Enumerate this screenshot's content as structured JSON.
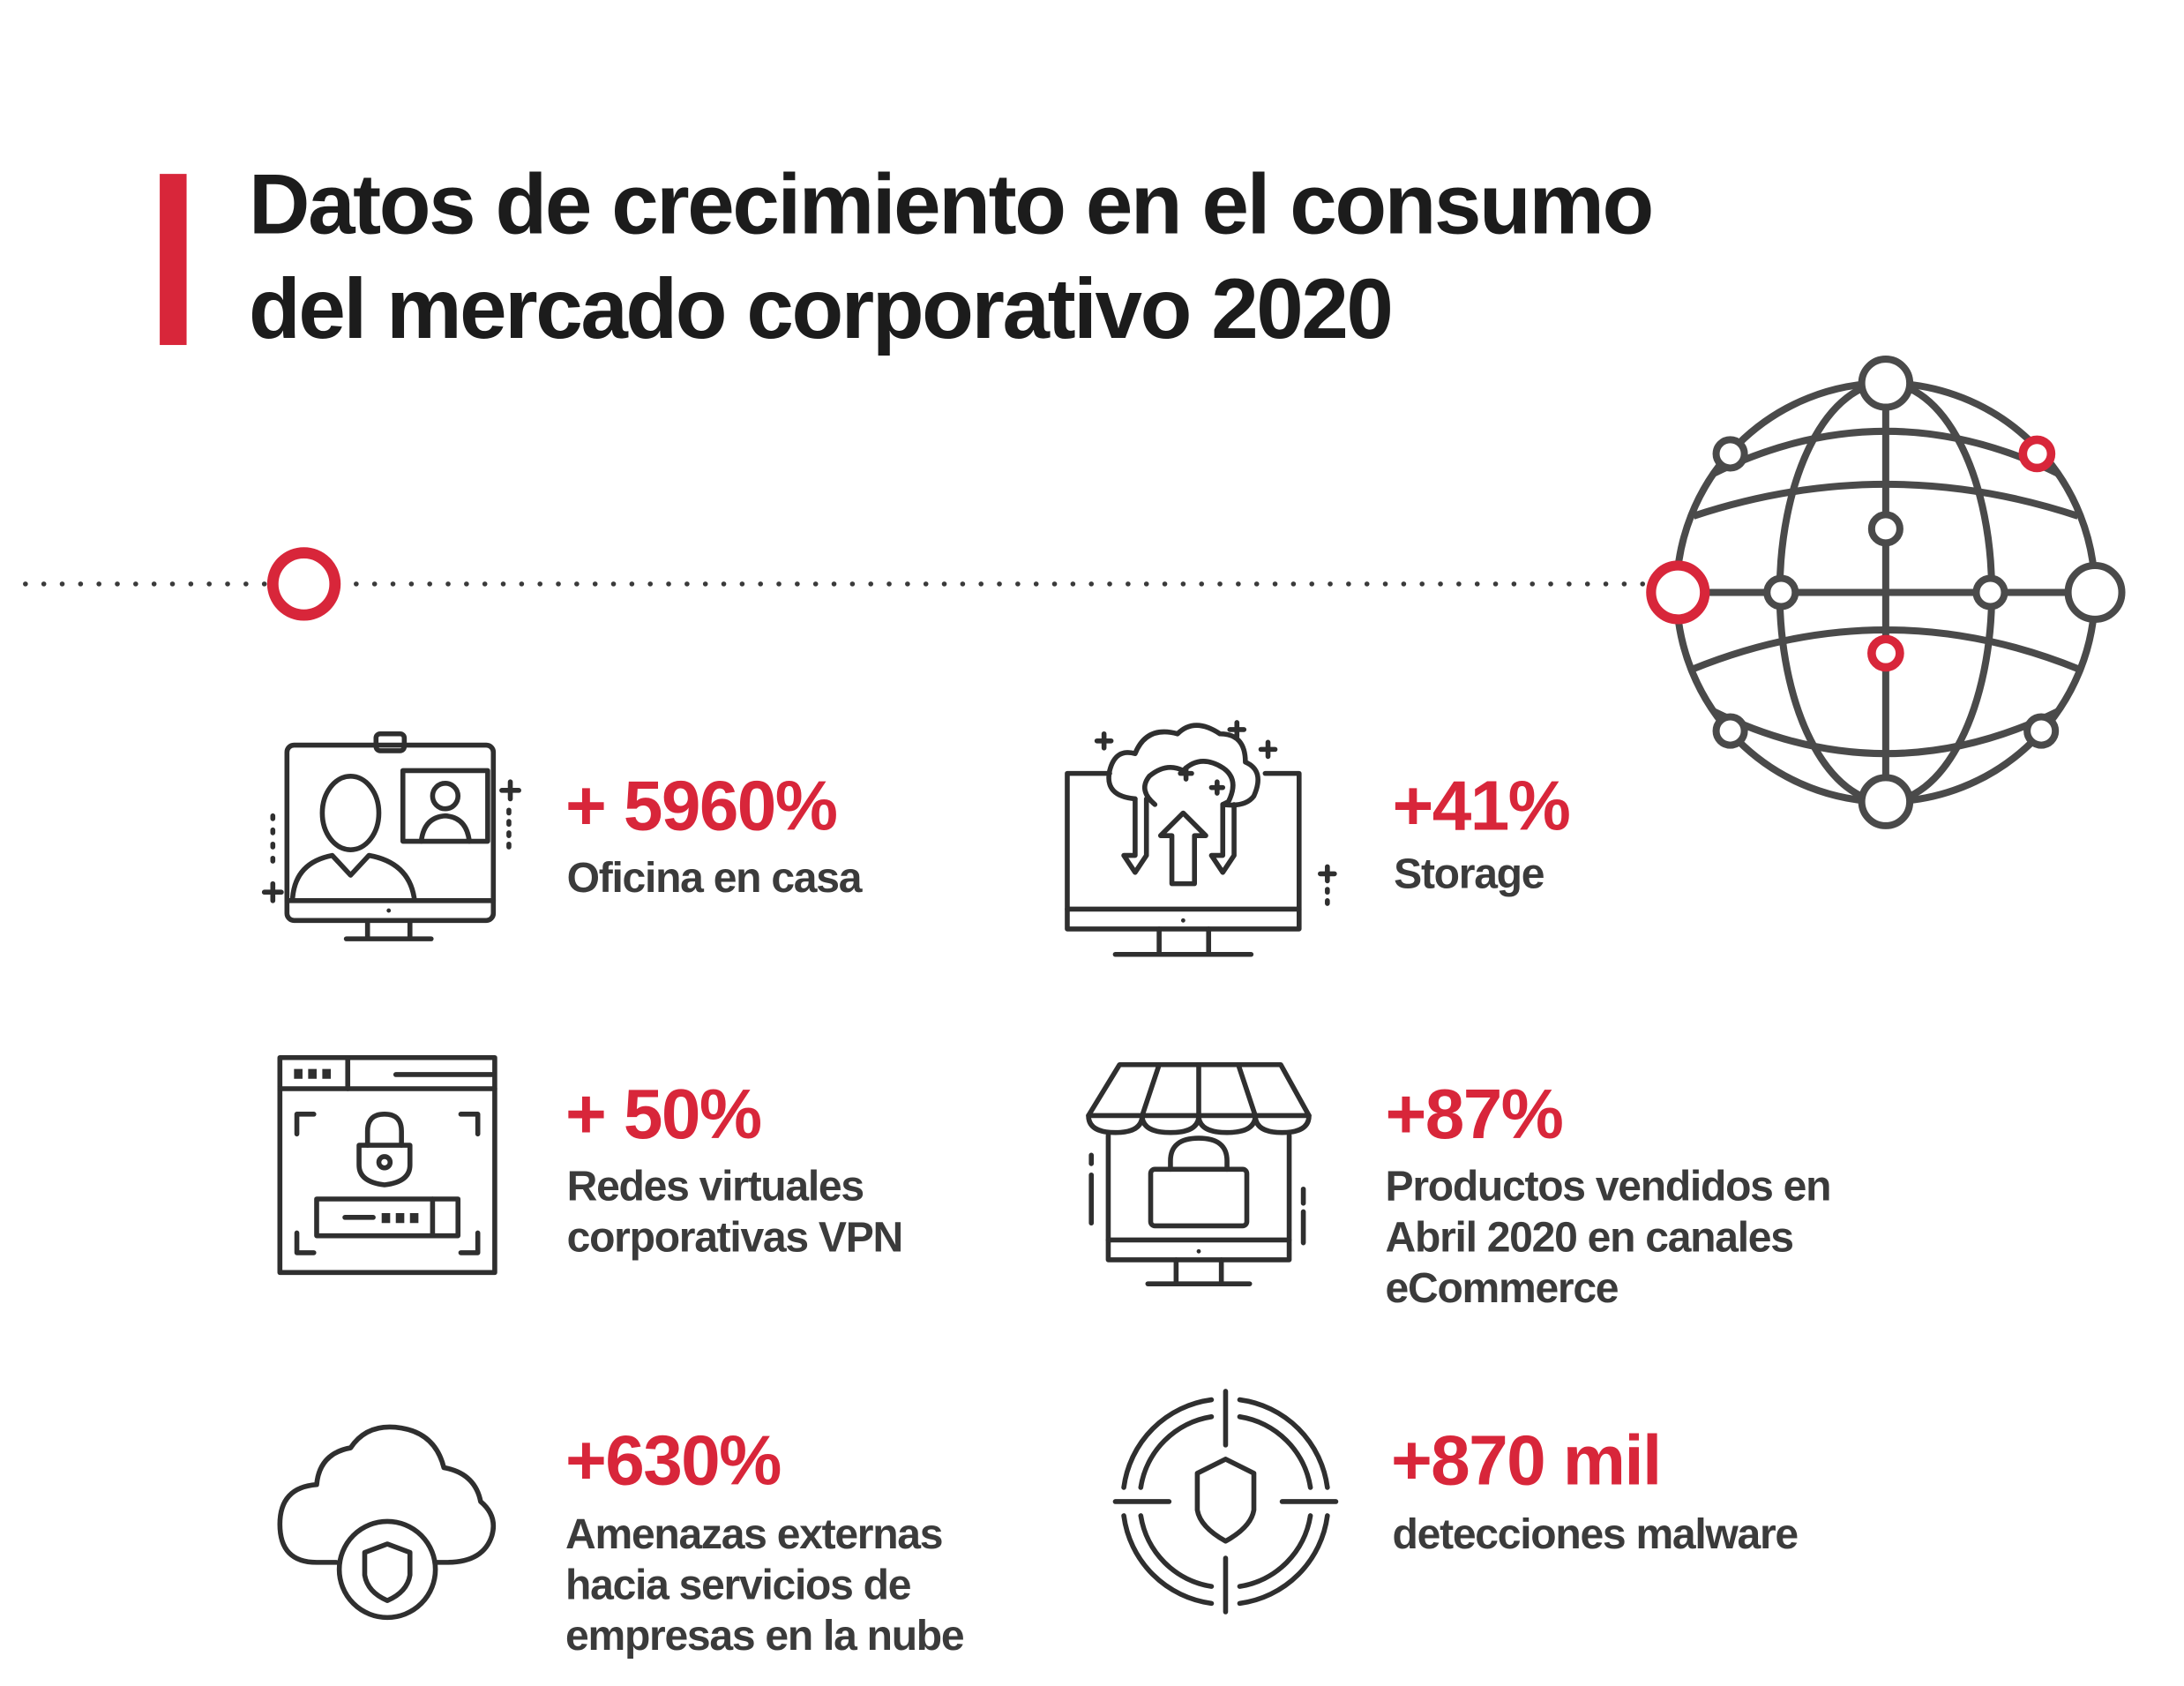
{
  "colors": {
    "accent": "#d8263a",
    "title": "#1c1c1c",
    "text": "#3b3b3b",
    "icon": "#2f2f2f",
    "globe": "#4a4a4a"
  },
  "title": {
    "line1": "Datos de crecimiento en el consumo",
    "line2": "del mercado corporativo 2020"
  },
  "stats": [
    {
      "icon": "video-call-monitor-icon",
      "value": "+ 5960%",
      "label": [
        "Oficina en casa"
      ]
    },
    {
      "icon": "cloud-storage-monitor-icon",
      "value": "+41%",
      "label": [
        "Storage"
      ]
    },
    {
      "icon": "vpn-lock-window-icon",
      "value": "+ 50%",
      "label": [
        "Redes virtuales",
        "corporativas VPN"
      ]
    },
    {
      "icon": "online-store-icon",
      "value": "+87%",
      "label": [
        "Productos vendidos en",
        "Abril 2020 en canales",
        "eCommerce"
      ]
    },
    {
      "icon": "cloud-shield-icon",
      "value": "+630%",
      "label": [
        "Amenazas externas",
        "hacia servicios de",
        "empresas en la nube"
      ]
    },
    {
      "icon": "target-shield-icon",
      "value": "+870 mil",
      "label": [
        "detecciones malware"
      ]
    }
  ]
}
